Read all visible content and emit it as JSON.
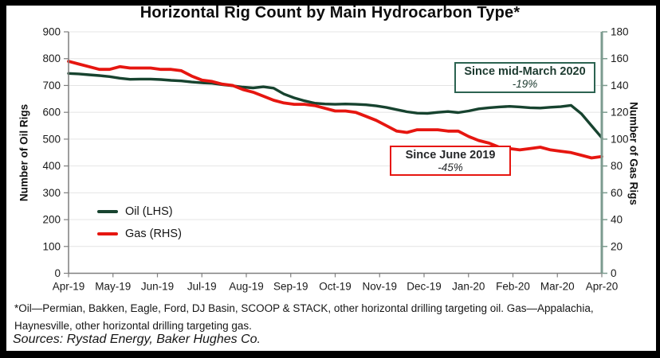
{
  "title": "Horizontal Rig Count by Main Hydrocarbon Type*",
  "chart_data": {
    "type": "line",
    "title": "Horizontal Rig Count by Main Hydrocarbon Type*",
    "x_granularity": "weekly",
    "categories": [
      "Apr-19",
      "May-19",
      "Jun-19",
      "Jul-19",
      "Aug-19",
      "Sep-19",
      "Oct-19",
      "Nov-19",
      "Dec-19",
      "Jan-20",
      "Feb-20",
      "Mar-20",
      "Apr-20"
    ],
    "grid": true,
    "legend_position": "middle-left",
    "left_axis": {
      "title": "Number of Oil Rigs",
      "min": 0,
      "max": 900,
      "ticks": [
        900,
        800,
        700,
        600,
        500,
        400,
        300,
        200,
        100,
        0
      ]
    },
    "right_axis": {
      "title": "Number of Gas Rigs",
      "min": 0,
      "max": 180,
      "ticks": [
        180,
        160,
        140,
        120,
        100,
        80,
        60,
        40,
        20,
        0
      ]
    },
    "series": [
      {
        "name": "Oil (LHS)",
        "axis": "left",
        "color": "#17432f",
        "values": [
          745,
          743,
          740,
          737,
          733,
          727,
          723,
          724,
          724,
          722,
          719,
          717,
          713,
          710,
          708,
          703,
          699,
          694,
          691,
          695,
          690,
          668,
          654,
          643,
          634,
          631,
          630,
          631,
          630,
          628,
          624,
          618,
          610,
          602,
          597,
          596,
          600,
          603,
          599,
          605,
          613,
          617,
          620,
          622,
          620,
          617,
          616,
          619,
          621,
          626,
          595,
          550,
          505
        ]
      },
      {
        "name": "Gas (RHS)",
        "axis": "right",
        "color": "#e61610",
        "values": [
          158,
          156,
          154,
          152,
          152,
          154,
          153,
          153,
          153,
          152,
          152,
          151,
          147,
          144,
          143,
          141,
          140,
          137,
          135,
          132,
          129,
          127,
          126,
          126,
          125,
          123,
          121,
          121,
          120,
          117,
          114,
          110,
          106,
          105,
          107,
          107,
          107,
          106,
          106,
          102,
          99,
          97,
          94,
          93,
          92,
          93,
          94,
          92,
          91,
          90,
          88,
          86,
          87
        ]
      }
    ],
    "annotations": [
      {
        "line1": "Since mid-March 2020",
        "line2": "-19%",
        "color": "#2c6351"
      },
      {
        "line1": "Since June 2019",
        "line2": "-45%",
        "color": "#e61610"
      }
    ],
    "right_axis_color": "#7c9b8f",
    "gridline_color": "#e4e4e4",
    "axis_color": "#7f7f7f"
  },
  "footnotes": {
    "definition": "*Oil—Permian, Bakken, Eagle, Ford, DJ Basin, SCOOP & STACK, other horizontal  drilling targeting oil. Gas—Appalachia, Haynesville, other horizontal drilling targeting gas.",
    "sources": "Sources: Rystad Energy, Baker Hughes Co."
  }
}
